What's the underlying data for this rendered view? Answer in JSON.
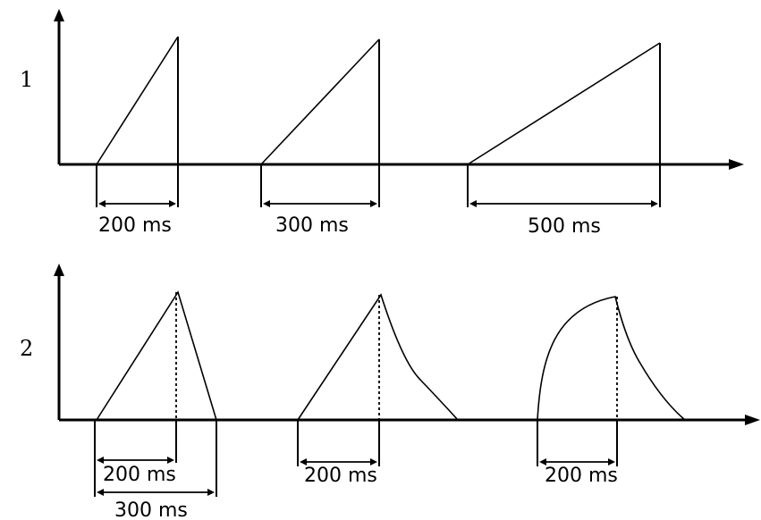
{
  "rows": [
    {
      "label": "1",
      "pulses": [
        {
          "duration_label": "200 ms"
        },
        {
          "duration_label": "300 ms"
        },
        {
          "duration_label": "500 ms"
        }
      ]
    },
    {
      "label": "2",
      "pulses": [
        {
          "rise_label": "200 ms",
          "total_label": "300 ms"
        },
        {
          "rise_label": "200 ms"
        },
        {
          "rise_label": "200 ms"
        }
      ]
    }
  ]
}
